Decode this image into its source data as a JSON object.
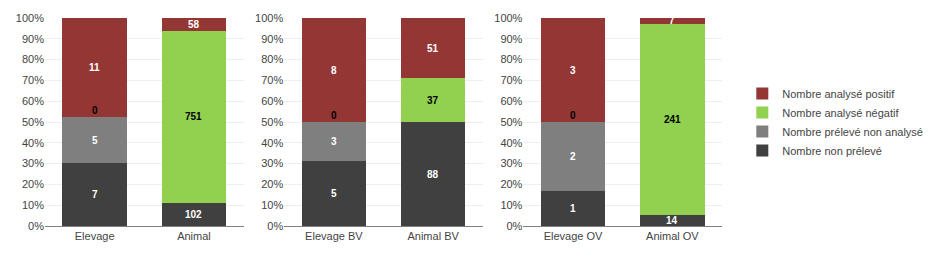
{
  "chart_data": [
    {
      "type": "bar",
      "stacked": true,
      "grid": true,
      "legend": "right",
      "categories": [
        "Elevage",
        "Animal"
      ],
      "series": [
        {
          "name": "Nombre non prélevé",
          "color": "#404040",
          "values": [
            30.4348,
            11.1965
          ],
          "counts": [
            7,
            102
          ]
        },
        {
          "name": "Nombre prélevé non analysé",
          "color": "#7f7f7f",
          "values": [
            21.7391,
            0
          ],
          "counts": [
            5,
            null
          ]
        },
        {
          "name": "Nombre analysé négatif",
          "color": "#92d050",
          "values": [
            0,
            82.4369
          ],
          "counts": [
            0,
            751
          ]
        },
        {
          "name": "Nombre analysé positif",
          "color": "#943634",
          "values": [
            47.8261,
            6.3666
          ],
          "counts": [
            11,
            58
          ]
        }
      ],
      "ylim": [
        0,
        100
      ],
      "yticks": [
        {
          "value": 0,
          "label": "0%"
        },
        {
          "value": 10,
          "label": "10%"
        },
        {
          "value": 20,
          "label": "20%"
        },
        {
          "value": 30,
          "label": "30%"
        },
        {
          "value": 40,
          "label": "40%"
        },
        {
          "value": 50,
          "label": "50%"
        },
        {
          "value": 60,
          "label": "60%"
        },
        {
          "value": 70,
          "label": "70%"
        },
        {
          "value": 80,
          "label": "80%"
        },
        {
          "value": 90,
          "label": "90%"
        },
        {
          "value": 100,
          "label": "100%"
        }
      ]
    },
    {
      "type": "bar",
      "stacked": true,
      "grid": true,
      "categories": [
        "Elevage BV",
        "Animal BV"
      ],
      "series": [
        {
          "name": "Nombre non prélevé",
          "color": "#404040",
          "values": [
            31.25,
            50
          ],
          "counts": [
            5,
            88
          ]
        },
        {
          "name": "Nombre prélevé non analysé",
          "color": "#7f7f7f",
          "values": [
            18.75,
            0
          ],
          "counts": [
            3,
            null
          ]
        },
        {
          "name": "Nombre analysé négatif",
          "color": "#92d050",
          "values": [
            0,
            21.0227
          ],
          "counts": [
            0,
            37
          ]
        },
        {
          "name": "Nombre analysé positif",
          "color": "#943634",
          "values": [
            50,
            28.9773
          ],
          "counts": [
            8,
            51
          ]
        }
      ],
      "ylim": [
        0,
        100
      ],
      "yticks": [
        {
          "value": 0,
          "label": "0%"
        },
        {
          "value": 10,
          "label": "10%"
        },
        {
          "value": 20,
          "label": "20%"
        },
        {
          "value": 30,
          "label": "30%"
        },
        {
          "value": 40,
          "label": "40%"
        },
        {
          "value": 50,
          "label": "50%"
        },
        {
          "value": 60,
          "label": "60%"
        },
        {
          "value": 70,
          "label": "70%"
        },
        {
          "value": 80,
          "label": "80%"
        },
        {
          "value": 90,
          "label": "90%"
        },
        {
          "value": 100,
          "label": "100%"
        }
      ]
    },
    {
      "type": "bar",
      "stacked": true,
      "grid": true,
      "categories": [
        "Elevage OV",
        "Animal OV"
      ],
      "series": [
        {
          "name": "Nombre non prélevé",
          "color": "#404040",
          "values": [
            16.6667,
            5.3435
          ],
          "counts": [
            1,
            14
          ]
        },
        {
          "name": "Nombre prélevé non analysé",
          "color": "#7f7f7f",
          "values": [
            33.3333,
            0
          ],
          "counts": [
            2,
            null
          ]
        },
        {
          "name": "Nombre analysé négatif",
          "color": "#92d050",
          "values": [
            0,
            91.9847
          ],
          "counts": [
            0,
            241
          ]
        },
        {
          "name": "Nombre analysé positif",
          "color": "#943634",
          "values": [
            50,
            2.6718
          ],
          "counts": [
            3,
            7
          ]
        }
      ],
      "ylim": [
        0,
        100
      ],
      "yticks": [
        {
          "value": 0,
          "label": "0%"
        },
        {
          "value": 10,
          "label": "10%"
        },
        {
          "value": 20,
          "label": "20%"
        },
        {
          "value": 30,
          "label": "30%"
        },
        {
          "value": 40,
          "label": "40%"
        },
        {
          "value": 50,
          "label": "50%"
        },
        {
          "value": 60,
          "label": "60%"
        },
        {
          "value": 70,
          "label": "70%"
        },
        {
          "value": 80,
          "label": "80%"
        },
        {
          "value": 90,
          "label": "90%"
        },
        {
          "value": 100,
          "label": "100%"
        }
      ]
    }
  ]
}
